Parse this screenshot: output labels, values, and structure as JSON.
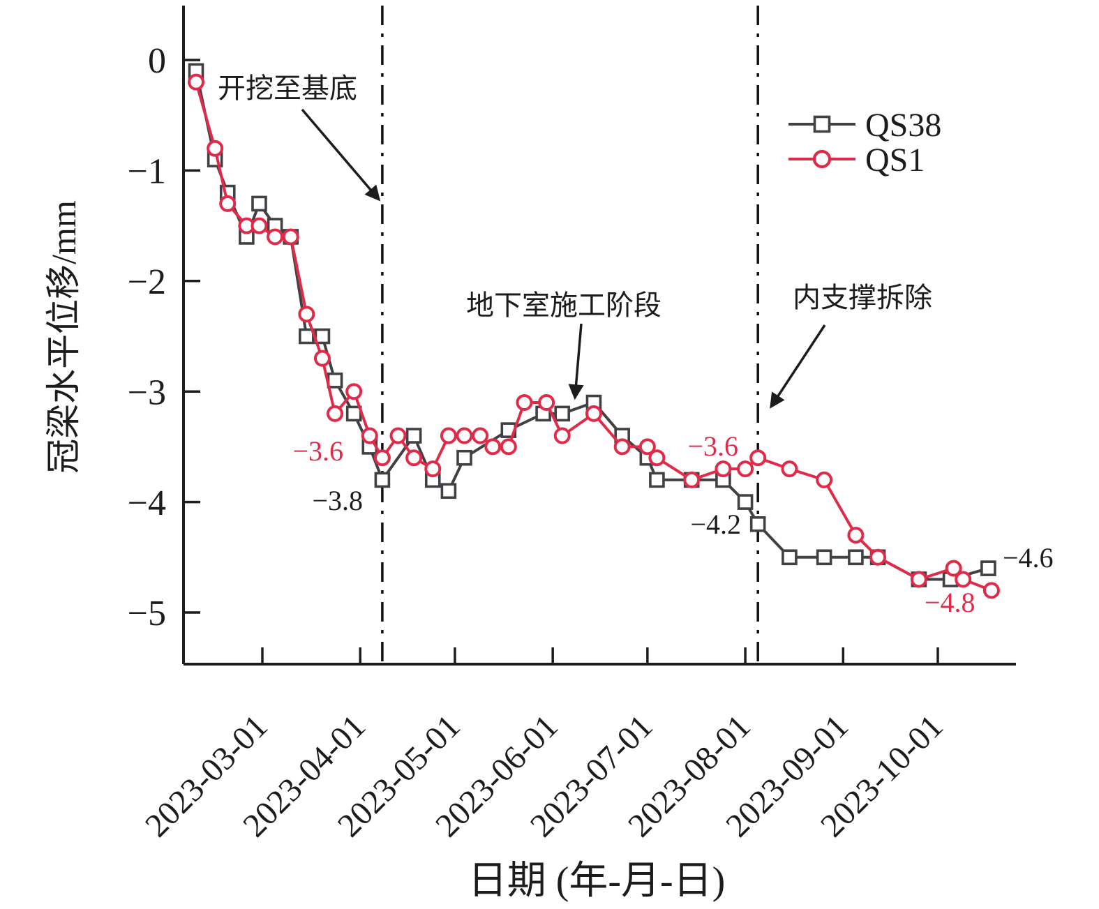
{
  "chart_data": {
    "type": "line",
    "title": "",
    "xlabel": "日期 (年-月-日)",
    "ylabel": "冠梁水平位移/mm",
    "x_tick_labels": [
      "2023-03-01",
      "2023-04-01",
      "2023-05-01",
      "2023-06-01",
      "2023-07-01",
      "2023-08-01",
      "2023-09-01",
      "2023-10-01"
    ],
    "y_tick_labels": [
      "0",
      "−1",
      "−2",
      "−3",
      "−4",
      "−5"
    ],
    "y_tick_values": [
      0,
      -1,
      -2,
      -3,
      -4,
      -5
    ],
    "ylim": [
      -5.5,
      0.5
    ],
    "xlim": [
      "2023-02-04",
      "2023-10-26"
    ],
    "grid": false,
    "legend_position": "upper-right-inside",
    "axis_color": "#1c1c1c",
    "series": [
      {
        "name": "QS38",
        "color": "#404045",
        "marker": "square",
        "points": [
          [
            "2023-02-08",
            -0.1
          ],
          [
            "2023-02-14",
            -0.9
          ],
          [
            "2023-02-18",
            -1.2
          ],
          [
            "2023-02-24",
            -1.6
          ],
          [
            "2023-02-28",
            -1.3
          ],
          [
            "2023-03-05",
            -1.5
          ],
          [
            "2023-03-10",
            -1.6
          ],
          [
            "2023-03-15",
            -2.5
          ],
          [
            "2023-03-20",
            -2.5
          ],
          [
            "2023-03-24",
            -2.9
          ],
          [
            "2023-03-30",
            -3.2
          ],
          [
            "2023-04-04",
            -3.5
          ],
          [
            "2023-04-08",
            -3.8
          ],
          [
            "2023-04-18",
            -3.4
          ],
          [
            "2023-04-24",
            -3.8
          ],
          [
            "2023-04-29",
            -3.9
          ],
          [
            "2023-05-04",
            -3.6
          ],
          [
            "2023-05-18",
            -3.35
          ],
          [
            "2023-05-29",
            -3.2
          ],
          [
            "2023-06-04",
            -3.2
          ],
          [
            "2023-06-14",
            -3.1
          ],
          [
            "2023-06-23",
            -3.4
          ],
          [
            "2023-07-01",
            -3.6
          ],
          [
            "2023-07-04",
            -3.8
          ],
          [
            "2023-07-15",
            -3.8
          ],
          [
            "2023-07-25",
            -3.8
          ],
          [
            "2023-08-01",
            -4.0
          ],
          [
            "2023-08-05",
            -4.2
          ],
          [
            "2023-08-15",
            -4.5
          ],
          [
            "2023-08-26",
            -4.5
          ],
          [
            "2023-09-05",
            -4.5
          ],
          [
            "2023-09-12",
            -4.5
          ],
          [
            "2023-09-25",
            -4.7
          ],
          [
            "2023-10-05",
            -4.7
          ],
          [
            "2023-10-17",
            -4.6
          ]
        ]
      },
      {
        "name": "QS1",
        "color": "#e02b48",
        "marker": "circle",
        "points": [
          [
            "2023-02-08",
            -0.2
          ],
          [
            "2023-02-14",
            -0.8
          ],
          [
            "2023-02-18",
            -1.3
          ],
          [
            "2023-02-24",
            -1.5
          ],
          [
            "2023-02-28",
            -1.5
          ],
          [
            "2023-03-05",
            -1.6
          ],
          [
            "2023-03-10",
            -1.6
          ],
          [
            "2023-03-15",
            -2.3
          ],
          [
            "2023-03-20",
            -2.7
          ],
          [
            "2023-03-24",
            -3.2
          ],
          [
            "2023-03-30",
            -3.0
          ],
          [
            "2023-04-04",
            -3.4
          ],
          [
            "2023-04-08",
            -3.6
          ],
          [
            "2023-04-13",
            -3.4
          ],
          [
            "2023-04-18",
            -3.6
          ],
          [
            "2023-04-24",
            -3.7
          ],
          [
            "2023-04-29",
            -3.4
          ],
          [
            "2023-05-04",
            -3.4
          ],
          [
            "2023-05-09",
            -3.4
          ],
          [
            "2023-05-13",
            -3.5
          ],
          [
            "2023-05-18",
            -3.5
          ],
          [
            "2023-05-23",
            -3.1
          ],
          [
            "2023-05-30",
            -3.1
          ],
          [
            "2023-06-04",
            -3.4
          ],
          [
            "2023-06-14",
            -3.2
          ],
          [
            "2023-06-23",
            -3.5
          ],
          [
            "2023-07-01",
            -3.5
          ],
          [
            "2023-07-04",
            -3.6
          ],
          [
            "2023-07-15",
            -3.8
          ],
          [
            "2023-07-25",
            -3.7
          ],
          [
            "2023-08-01",
            -3.7
          ],
          [
            "2023-08-05",
            -3.6
          ],
          [
            "2023-08-15",
            -3.7
          ],
          [
            "2023-08-26",
            -3.8
          ],
          [
            "2023-09-05",
            -4.3
          ],
          [
            "2023-09-12",
            -4.5
          ],
          [
            "2023-09-25",
            -4.7
          ],
          [
            "2023-10-06",
            -4.6
          ],
          [
            "2023-10-09",
            -4.7
          ],
          [
            "2023-10-18",
            -4.8
          ]
        ]
      }
    ],
    "event_lines": [
      {
        "date": "2023-04-08",
        "style": "dash-dot"
      },
      {
        "date": "2023-08-05",
        "style": "dash-dot"
      }
    ],
    "callouts": [
      {
        "text": "开挖至基底",
        "points_to_date": "2023-04-08"
      },
      {
        "text": "地下室施工阶段",
        "points_to_date": "2023-06-14"
      },
      {
        "text": "内支撑拆除",
        "points_to_date": "2023-08-05"
      }
    ],
    "value_labels": [
      {
        "text": "−3.6",
        "series": "QS1",
        "date": "2023-04-08",
        "color": "#e02b48"
      },
      {
        "text": "−3.8",
        "series": "QS38",
        "date": "2023-04-08",
        "color": "#1c1c1c"
      },
      {
        "text": "−3.6",
        "series": "QS1",
        "date": "2023-08-05",
        "color": "#e02b48"
      },
      {
        "text": "−4.2",
        "series": "QS38",
        "date": "2023-08-05",
        "color": "#1c1c1c"
      },
      {
        "text": "−4.6",
        "series": "QS38",
        "date": "2023-10-17",
        "color": "#1c1c1c"
      },
      {
        "text": "−4.8",
        "series": "QS1",
        "date": "2023-10-18",
        "color": "#e02b48"
      }
    ]
  }
}
